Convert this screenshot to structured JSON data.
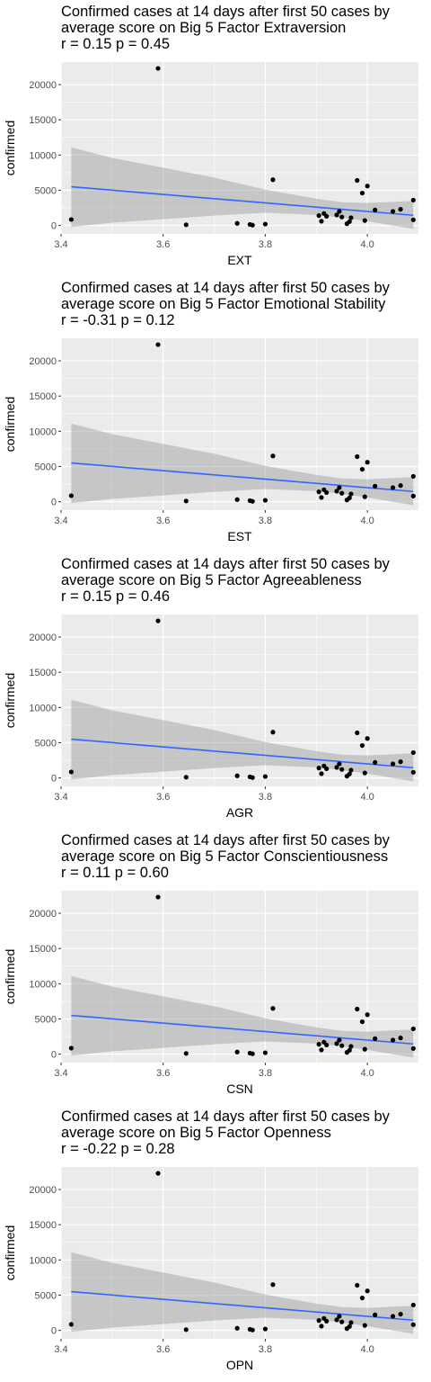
{
  "chart_data": [
    {
      "type": "scatter",
      "title_lines": [
        "Confirmed cases at 14 days after first 50 cases by",
        "average score on Big 5 Factor Extraversion",
        "r = 0.15 p = 0.45"
      ],
      "xlabel": "EXT",
      "ylabel": "confirmed",
      "xlim": [
        3.4,
        4.1
      ],
      "ylim": [
        -1200,
        23200
      ],
      "x_ticks": [
        3.4,
        3.6,
        3.8,
        4.0
      ],
      "x_tick_labels": [
        "3.4",
        "3.6",
        "3.8",
        "4.0"
      ],
      "y_ticks": [
        0,
        5000,
        10000,
        15000,
        20000
      ],
      "y_tick_labels": [
        "0",
        "5000",
        "10000",
        "15000",
        "20000"
      ],
      "grid": true,
      "points": [
        [
          3.42,
          850
        ],
        [
          3.59,
          22300
        ],
        [
          3.645,
          100
        ],
        [
          3.745,
          300
        ],
        [
          3.77,
          150
        ],
        [
          3.775,
          50
        ],
        [
          3.8,
          200
        ],
        [
          3.815,
          6500
        ],
        [
          3.905,
          1400
        ],
        [
          3.91,
          600
        ],
        [
          3.915,
          1700
        ],
        [
          3.92,
          1300
        ],
        [
          3.94,
          1500
        ],
        [
          3.945,
          2000
        ],
        [
          3.95,
          1200
        ],
        [
          3.96,
          250
        ],
        [
          3.965,
          550
        ],
        [
          3.968,
          1100
        ],
        [
          3.98,
          6400
        ],
        [
          3.99,
          4600
        ],
        [
          3.995,
          700
        ],
        [
          4.0,
          5600
        ],
        [
          4.015,
          2200
        ],
        [
          4.05,
          2000
        ],
        [
          4.065,
          2300
        ],
        [
          4.09,
          3600
        ],
        [
          4.09,
          800
        ]
      ],
      "trend": {
        "x": [
          3.42,
          4.09
        ],
        "y": [
          5500,
          1450
        ]
      },
      "ci_band": {
        "x": [
          3.42,
          3.5,
          3.6,
          3.7,
          3.8,
          3.9,
          3.95,
          4.0,
          4.09
        ],
        "lower": [
          -200,
          400,
          900,
          1400,
          1800,
          1500,
          1100,
          600,
          -500
        ],
        "upper": [
          11100,
          9600,
          8200,
          6800,
          5100,
          3800,
          3300,
          3200,
          3500
        ]
      },
      "colors": {
        "points": "#000000",
        "trend": "#3366ff",
        "band": "#999999",
        "panel_bg": "#ebebeb",
        "grid": "#ffffff"
      }
    },
    {
      "type": "scatter",
      "title_lines": [
        "Confirmed cases at 14 days after first 50 cases by",
        "average score on Big 5 Factor Emotional Stability",
        "r = -0.31 p = 0.12"
      ],
      "xlabel": "EST",
      "ylabel": "confirmed",
      "xlim": [
        3.4,
        4.1
      ],
      "ylim": [
        -1200,
        23200
      ],
      "x_ticks": [
        3.4,
        3.6,
        3.8,
        4.0
      ],
      "x_tick_labels": [
        "3.4",
        "3.6",
        "3.8",
        "4.0"
      ],
      "y_ticks": [
        0,
        5000,
        10000,
        15000,
        20000
      ],
      "y_tick_labels": [
        "0",
        "5000",
        "10000",
        "15000",
        "20000"
      ],
      "grid": true,
      "points": [
        [
          3.42,
          850
        ],
        [
          3.59,
          22300
        ],
        [
          3.645,
          100
        ],
        [
          3.745,
          300
        ],
        [
          3.77,
          150
        ],
        [
          3.775,
          50
        ],
        [
          3.8,
          200
        ],
        [
          3.815,
          6500
        ],
        [
          3.905,
          1400
        ],
        [
          3.91,
          600
        ],
        [
          3.915,
          1700
        ],
        [
          3.92,
          1300
        ],
        [
          3.94,
          1500
        ],
        [
          3.945,
          2000
        ],
        [
          3.95,
          1200
        ],
        [
          3.96,
          250
        ],
        [
          3.965,
          550
        ],
        [
          3.968,
          1100
        ],
        [
          3.98,
          6400
        ],
        [
          3.99,
          4600
        ],
        [
          3.995,
          700
        ],
        [
          4.0,
          5600
        ],
        [
          4.015,
          2200
        ],
        [
          4.05,
          2000
        ],
        [
          4.065,
          2300
        ],
        [
          4.09,
          3600
        ],
        [
          4.09,
          800
        ]
      ],
      "trend": {
        "x": [
          3.42,
          4.09
        ],
        "y": [
          5500,
          1450
        ]
      },
      "ci_band": {
        "x": [
          3.42,
          3.5,
          3.6,
          3.7,
          3.8,
          3.9,
          3.95,
          4.0,
          4.09
        ],
        "lower": [
          -200,
          400,
          900,
          1400,
          1800,
          1500,
          1100,
          600,
          -500
        ],
        "upper": [
          11100,
          9600,
          8200,
          6800,
          5100,
          3800,
          3300,
          3200,
          3500
        ]
      },
      "colors": {
        "points": "#000000",
        "trend": "#3366ff",
        "band": "#999999",
        "panel_bg": "#ebebeb",
        "grid": "#ffffff"
      }
    },
    {
      "type": "scatter",
      "title_lines": [
        "Confirmed cases at 14 days after first 50 cases by",
        "average score on Big 5 Factor Agreeableness",
        "r = 0.15 p = 0.46"
      ],
      "xlabel": "AGR",
      "ylabel": "confirmed",
      "xlim": [
        3.4,
        4.1
      ],
      "ylim": [
        -1200,
        23200
      ],
      "x_ticks": [
        3.4,
        3.6,
        3.8,
        4.0
      ],
      "x_tick_labels": [
        "3.4",
        "3.6",
        "3.8",
        "4.0"
      ],
      "y_ticks": [
        0,
        5000,
        10000,
        15000,
        20000
      ],
      "y_tick_labels": [
        "0",
        "5000",
        "10000",
        "15000",
        "20000"
      ],
      "grid": true,
      "points": [
        [
          3.42,
          850
        ],
        [
          3.59,
          22300
        ],
        [
          3.645,
          100
        ],
        [
          3.745,
          300
        ],
        [
          3.77,
          150
        ],
        [
          3.775,
          50
        ],
        [
          3.8,
          200
        ],
        [
          3.815,
          6500
        ],
        [
          3.905,
          1400
        ],
        [
          3.91,
          600
        ],
        [
          3.915,
          1700
        ],
        [
          3.92,
          1300
        ],
        [
          3.94,
          1500
        ],
        [
          3.945,
          2000
        ],
        [
          3.95,
          1200
        ],
        [
          3.96,
          250
        ],
        [
          3.965,
          550
        ],
        [
          3.968,
          1100
        ],
        [
          3.98,
          6400
        ],
        [
          3.99,
          4600
        ],
        [
          3.995,
          700
        ],
        [
          4.0,
          5600
        ],
        [
          4.015,
          2200
        ],
        [
          4.05,
          2000
        ],
        [
          4.065,
          2300
        ],
        [
          4.09,
          3600
        ],
        [
          4.09,
          800
        ]
      ],
      "trend": {
        "x": [
          3.42,
          4.09
        ],
        "y": [
          5500,
          1450
        ]
      },
      "ci_band": {
        "x": [
          3.42,
          3.5,
          3.6,
          3.7,
          3.8,
          3.9,
          3.95,
          4.0,
          4.09
        ],
        "lower": [
          -200,
          400,
          900,
          1400,
          1800,
          1500,
          1100,
          600,
          -500
        ],
        "upper": [
          11100,
          9600,
          8200,
          6800,
          5100,
          3800,
          3300,
          3200,
          3500
        ]
      },
      "colors": {
        "points": "#000000",
        "trend": "#3366ff",
        "band": "#999999",
        "panel_bg": "#ebebeb",
        "grid": "#ffffff"
      }
    },
    {
      "type": "scatter",
      "title_lines": [
        "Confirmed cases at 14 days after first 50 cases by",
        "average score on Big 5 Factor Conscientiousness",
        "r = 0.11 p = 0.60"
      ],
      "xlabel": "CSN",
      "ylabel": "confirmed",
      "xlim": [
        3.4,
        4.1
      ],
      "ylim": [
        -1200,
        23200
      ],
      "x_ticks": [
        3.4,
        3.6,
        3.8,
        4.0
      ],
      "x_tick_labels": [
        "3.4",
        "3.6",
        "3.8",
        "4.0"
      ],
      "y_ticks": [
        0,
        5000,
        10000,
        15000,
        20000
      ],
      "y_tick_labels": [
        "0",
        "5000",
        "10000",
        "15000",
        "20000"
      ],
      "grid": true,
      "points": [
        [
          3.42,
          850
        ],
        [
          3.59,
          22300
        ],
        [
          3.645,
          100
        ],
        [
          3.745,
          300
        ],
        [
          3.77,
          150
        ],
        [
          3.775,
          50
        ],
        [
          3.8,
          200
        ],
        [
          3.815,
          6500
        ],
        [
          3.905,
          1400
        ],
        [
          3.91,
          600
        ],
        [
          3.915,
          1700
        ],
        [
          3.92,
          1300
        ],
        [
          3.94,
          1500
        ],
        [
          3.945,
          2000
        ],
        [
          3.95,
          1200
        ],
        [
          3.96,
          250
        ],
        [
          3.965,
          550
        ],
        [
          3.968,
          1100
        ],
        [
          3.98,
          6400
        ],
        [
          3.99,
          4600
        ],
        [
          3.995,
          700
        ],
        [
          4.0,
          5600
        ],
        [
          4.015,
          2200
        ],
        [
          4.05,
          2000
        ],
        [
          4.065,
          2300
        ],
        [
          4.09,
          3600
        ],
        [
          4.09,
          800
        ]
      ],
      "trend": {
        "x": [
          3.42,
          4.09
        ],
        "y": [
          5500,
          1450
        ]
      },
      "ci_band": {
        "x": [
          3.42,
          3.5,
          3.6,
          3.7,
          3.8,
          3.9,
          3.95,
          4.0,
          4.09
        ],
        "lower": [
          -200,
          400,
          900,
          1400,
          1800,
          1500,
          1100,
          600,
          -500
        ],
        "upper": [
          11100,
          9600,
          8200,
          6800,
          5100,
          3800,
          3300,
          3200,
          3500
        ]
      },
      "colors": {
        "points": "#000000",
        "trend": "#3366ff",
        "band": "#999999",
        "panel_bg": "#ebebeb",
        "grid": "#ffffff"
      }
    },
    {
      "type": "scatter",
      "title_lines": [
        "Confirmed cases at 14 days after first 50 cases by",
        "average score on Big 5 Factor Openness",
        "r = -0.22 p = 0.28"
      ],
      "xlabel": "OPN",
      "ylabel": "confirmed",
      "xlim": [
        3.4,
        4.1
      ],
      "ylim": [
        -1200,
        23200
      ],
      "x_ticks": [
        3.4,
        3.6,
        3.8,
        4.0
      ],
      "x_tick_labels": [
        "3.4",
        "3.6",
        "3.8",
        "4.0"
      ],
      "y_ticks": [
        0,
        5000,
        10000,
        15000,
        20000
      ],
      "y_tick_labels": [
        "0",
        "5000",
        "10000",
        "15000",
        "20000"
      ],
      "grid": true,
      "points": [
        [
          3.42,
          850
        ],
        [
          3.59,
          22300
        ],
        [
          3.645,
          100
        ],
        [
          3.745,
          300
        ],
        [
          3.77,
          150
        ],
        [
          3.775,
          50
        ],
        [
          3.8,
          200
        ],
        [
          3.815,
          6500
        ],
        [
          3.905,
          1400
        ],
        [
          3.91,
          600
        ],
        [
          3.915,
          1700
        ],
        [
          3.92,
          1300
        ],
        [
          3.94,
          1500
        ],
        [
          3.945,
          2000
        ],
        [
          3.95,
          1200
        ],
        [
          3.96,
          250
        ],
        [
          3.965,
          550
        ],
        [
          3.968,
          1100
        ],
        [
          3.98,
          6400
        ],
        [
          3.99,
          4600
        ],
        [
          3.995,
          700
        ],
        [
          4.0,
          5600
        ],
        [
          4.015,
          2200
        ],
        [
          4.05,
          2000
        ],
        [
          4.065,
          2300
        ],
        [
          4.09,
          3600
        ],
        [
          4.09,
          800
        ]
      ],
      "trend": {
        "x": [
          3.42,
          4.09
        ],
        "y": [
          5500,
          1450
        ]
      },
      "ci_band": {
        "x": [
          3.42,
          3.5,
          3.6,
          3.7,
          3.8,
          3.9,
          3.95,
          4.0,
          4.09
        ],
        "lower": [
          -200,
          400,
          900,
          1400,
          1800,
          1500,
          1100,
          600,
          -500
        ],
        "upper": [
          11100,
          9600,
          8200,
          6800,
          5100,
          3800,
          3300,
          3200,
          3500
        ]
      },
      "colors": {
        "points": "#000000",
        "trend": "#3366ff",
        "band": "#999999",
        "panel_bg": "#ebebeb",
        "grid": "#ffffff"
      }
    }
  ]
}
